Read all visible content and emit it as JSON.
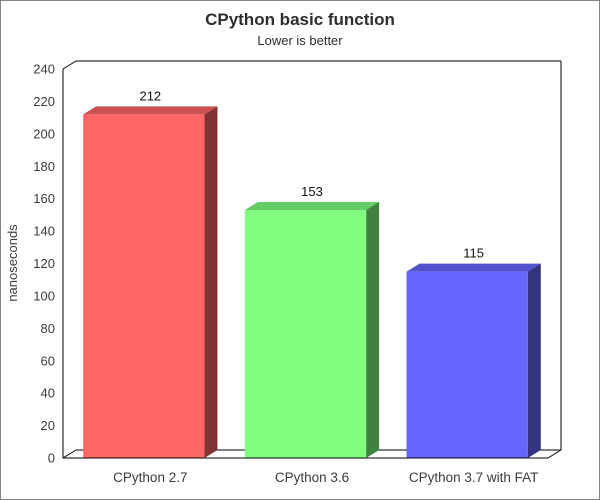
{
  "chart_data": {
    "type": "bar",
    "projection": "pseudo-3d",
    "title": "CPython basic function",
    "subtitle": "Lower is better",
    "ylabel": "nanoseconds",
    "xlabel": "",
    "categories": [
      "CPython 2.7",
      "CPython 3.6",
      "CPython 3.7 with FAT"
    ],
    "values": [
      212,
      153,
      115
    ],
    "value_labels": [
      "212",
      "153",
      "115"
    ],
    "bar_colors": [
      "#ff6666",
      "#80ff80",
      "#6666ff"
    ],
    "ylim": [
      0,
      240
    ],
    "ytick_step": 20,
    "grid": false,
    "legend": "none"
  },
  "colors": {
    "background": "#ffffff",
    "frame_border": "#828282",
    "axis_line": "#000000",
    "title_text": "#2e2e2e",
    "axis_text": "#3c3c3c",
    "value_text": "#111111"
  }
}
